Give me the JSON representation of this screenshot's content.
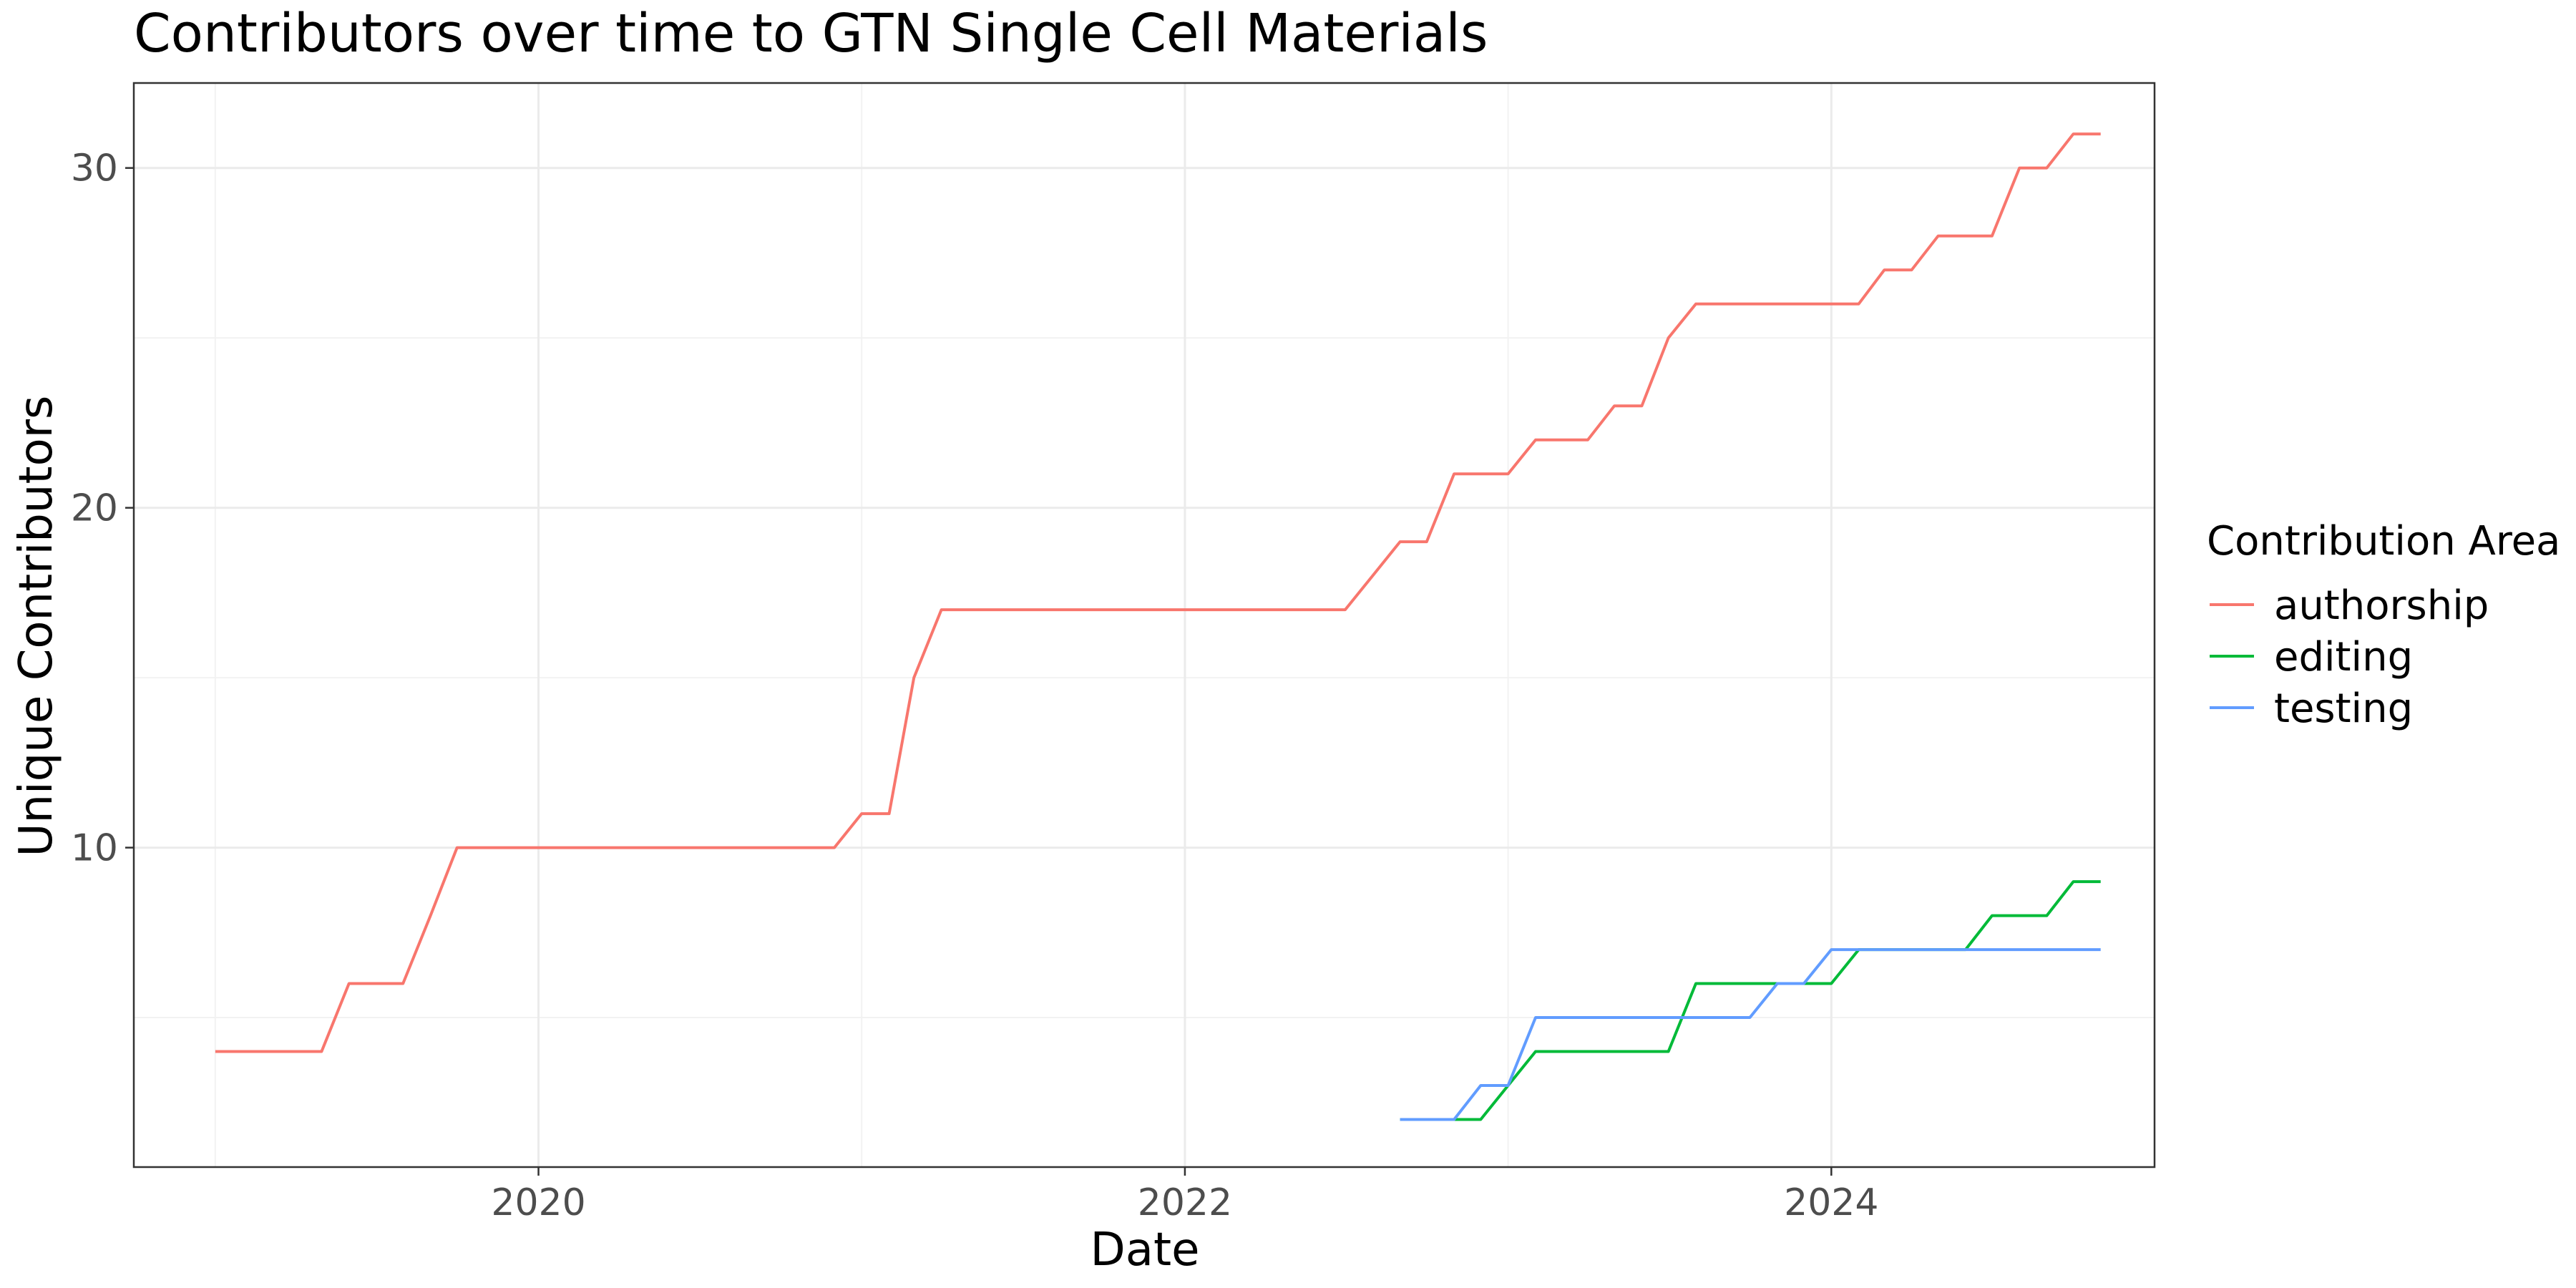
{
  "chart_data": {
    "type": "line",
    "title": "Contributors over time to GTN Single Cell Materials",
    "xlabel": "Date",
    "ylabel": "Unique Contributors",
    "xlim": [
      "2018-10-01",
      "2025-01-01"
    ],
    "ylim": [
      0.6,
      32.5
    ],
    "x_ticks": [
      "2020",
      "2022",
      "2024"
    ],
    "y_ticks": [
      10,
      20,
      30
    ],
    "grid": true,
    "legend": {
      "title": "Contribution Area",
      "placement": "right"
    },
    "series": [
      {
        "name": "authorship",
        "color": "#F8766D",
        "points": [
          [
            "2019-01-01",
            4
          ],
          [
            "2019-02-01",
            4
          ],
          [
            "2019-03-01",
            4
          ],
          [
            "2019-04-01",
            4
          ],
          [
            "2019-05-01",
            4
          ],
          [
            "2019-06-01",
            6
          ],
          [
            "2019-07-01",
            6
          ],
          [
            "2019-08-01",
            6
          ],
          [
            "2019-09-01",
            8
          ],
          [
            "2019-10-01",
            10
          ],
          [
            "2019-11-01",
            10
          ],
          [
            "2019-12-01",
            10
          ],
          [
            "2020-06-01",
            10
          ],
          [
            "2020-12-01",
            10
          ],
          [
            "2021-01-01",
            11
          ],
          [
            "2021-02-01",
            11
          ],
          [
            "2021-03-01",
            15
          ],
          [
            "2021-04-01",
            17
          ],
          [
            "2021-05-01",
            17
          ],
          [
            "2022-06-01",
            17
          ],
          [
            "2022-07-01",
            17
          ],
          [
            "2022-08-01",
            18
          ],
          [
            "2022-09-01",
            19
          ],
          [
            "2022-10-01",
            19
          ],
          [
            "2022-11-01",
            21
          ],
          [
            "2022-12-01",
            21
          ],
          [
            "2023-01-01",
            21
          ],
          [
            "2023-02-01",
            22
          ],
          [
            "2023-03-01",
            22
          ],
          [
            "2023-04-01",
            22
          ],
          [
            "2023-05-01",
            23
          ],
          [
            "2023-06-01",
            23
          ],
          [
            "2023-07-01",
            25
          ],
          [
            "2023-08-01",
            26
          ],
          [
            "2023-09-01",
            26
          ],
          [
            "2023-12-01",
            26
          ],
          [
            "2024-01-01",
            26
          ],
          [
            "2024-02-01",
            26
          ],
          [
            "2024-03-01",
            27
          ],
          [
            "2024-04-01",
            27
          ],
          [
            "2024-05-01",
            28
          ],
          [
            "2024-06-01",
            28
          ],
          [
            "2024-07-01",
            28
          ],
          [
            "2024-08-01",
            30
          ],
          [
            "2024-09-01",
            30
          ],
          [
            "2024-10-01",
            31
          ],
          [
            "2024-11-01",
            31
          ]
        ]
      },
      {
        "name": "editing",
        "color": "#00BA38",
        "points": [
          [
            "2022-09-01",
            2
          ],
          [
            "2022-10-01",
            2
          ],
          [
            "2022-11-01",
            2
          ],
          [
            "2022-12-01",
            2
          ],
          [
            "2023-01-01",
            3
          ],
          [
            "2023-02-01",
            4
          ],
          [
            "2023-03-01",
            4
          ],
          [
            "2023-04-01",
            4
          ],
          [
            "2023-05-01",
            4
          ],
          [
            "2023-06-01",
            4
          ],
          [
            "2023-07-01",
            4
          ],
          [
            "2023-08-01",
            6
          ],
          [
            "2023-09-01",
            6
          ],
          [
            "2023-10-01",
            6
          ],
          [
            "2023-11-01",
            6
          ],
          [
            "2023-12-01",
            6
          ],
          [
            "2024-01-01",
            6
          ],
          [
            "2024-02-01",
            7
          ],
          [
            "2024-03-01",
            7
          ],
          [
            "2024-04-01",
            7
          ],
          [
            "2024-05-01",
            7
          ],
          [
            "2024-06-01",
            7
          ],
          [
            "2024-07-01",
            8
          ],
          [
            "2024-08-01",
            8
          ],
          [
            "2024-09-01",
            8
          ],
          [
            "2024-10-01",
            9
          ],
          [
            "2024-11-01",
            9
          ]
        ]
      },
      {
        "name": "testing",
        "color": "#619CFF",
        "points": [
          [
            "2022-09-01",
            2
          ],
          [
            "2022-10-01",
            2
          ],
          [
            "2022-11-01",
            2
          ],
          [
            "2022-12-01",
            3
          ],
          [
            "2023-01-01",
            3
          ],
          [
            "2023-02-01",
            5
          ],
          [
            "2023-03-01",
            5
          ],
          [
            "2023-06-01",
            5
          ],
          [
            "2023-09-01",
            5
          ],
          [
            "2023-10-01",
            5
          ],
          [
            "2023-11-01",
            6
          ],
          [
            "2023-12-01",
            6
          ],
          [
            "2024-01-01",
            7
          ],
          [
            "2024-04-01",
            7
          ],
          [
            "2024-07-01",
            7
          ],
          [
            "2024-11-01",
            7
          ]
        ]
      }
    ]
  }
}
